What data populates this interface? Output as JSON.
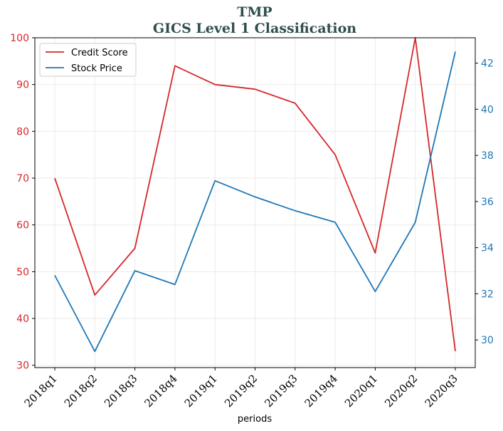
{
  "chart_data": {
    "type": "line",
    "title": "TMP",
    "subtitle": "GICS Level 1 Classification",
    "xlabel": "periods",
    "categories": [
      "2018q1",
      "2018q2",
      "2018q3",
      "2018q4",
      "2019q1",
      "2019q2",
      "2019q3",
      "2019q4",
      "2020q1",
      "2020q2",
      "2020q3"
    ],
    "y_left": {
      "ylim": [
        29.5,
        100
      ],
      "ticks": [
        30,
        40,
        50,
        60,
        70,
        80,
        90,
        100
      ],
      "color": "#d62728"
    },
    "y_right": {
      "ylim": [
        28.8,
        43.1
      ],
      "ticks": [
        30,
        32,
        34,
        36,
        38,
        40,
        42
      ],
      "color": "#1f77b4"
    },
    "series": [
      {
        "name": "Credit Score",
        "axis": "left",
        "color": "#d62728",
        "values": [
          70,
          45,
          55,
          94,
          90,
          89,
          86,
          75,
          54,
          100,
          33
        ]
      },
      {
        "name": "Stock Price",
        "axis": "right",
        "color": "#1f77b4",
        "values": [
          32.8,
          29.5,
          33.0,
          32.4,
          36.9,
          36.2,
          35.6,
          35.1,
          32.1,
          35.1,
          42.5
        ]
      }
    ],
    "grid": true,
    "legend_position": "top-left"
  }
}
